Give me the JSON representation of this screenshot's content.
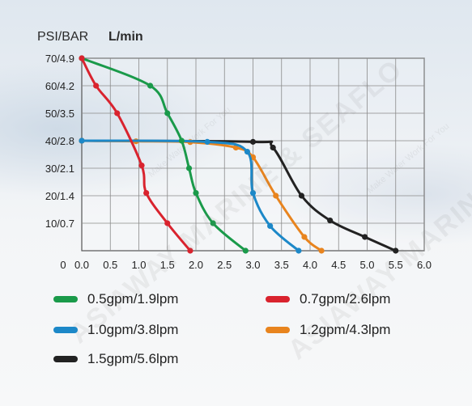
{
  "chart_data": {
    "type": "line",
    "ylabel": "PSI/BAR",
    "xlabel": "L/min",
    "xlim": [
      0,
      6.0
    ],
    "ylim": [
      0,
      70
    ],
    "grid": true,
    "x_ticks": [
      "0.5",
      "1.0",
      "1.5",
      "2.0",
      "2.5",
      "3.0",
      "3.5",
      "4.0",
      "4.5",
      "5.0",
      "5.5",
      "6.0"
    ],
    "x_tick_values": [
      0.5,
      1.0,
      1.5,
      2.0,
      2.5,
      3.0,
      3.5,
      4.0,
      4.5,
      5.0,
      5.5,
      6.0
    ],
    "origin_labels": [
      "0",
      "0.0"
    ],
    "y_ticks": [
      "10/0.7",
      "20/1.4",
      "30/2.1",
      "40/2.8",
      "50/3.5",
      "60/4.2",
      "70/4.9"
    ],
    "y_tick_values": [
      10,
      20,
      30,
      40,
      50,
      60,
      70
    ],
    "series": [
      {
        "name": "0.5gpm/1.9lpm",
        "color": "#1a9a4a",
        "x": [
          0,
          1.2,
          1.5,
          1.75,
          1.88,
          2.0,
          2.3,
          2.87
        ],
        "y": [
          70,
          60,
          50,
          40,
          30,
          21,
          10,
          0
        ]
      },
      {
        "name": "0.7gpm/2.6lpm",
        "color": "#d9232e",
        "x": [
          0,
          0.25,
          0.62,
          1.05,
          1.13,
          1.5,
          1.9
        ],
        "y": [
          70,
          60,
          50,
          31,
          21,
          10,
          0
        ]
      },
      {
        "name": "1.0gpm/3.8lpm",
        "color": "#1c88c8",
        "x": [
          0,
          2.2,
          2.9,
          3.0,
          3.3,
          3.8
        ],
        "y": [
          40,
          39.6,
          36,
          21,
          9,
          0
        ]
      },
      {
        "name": "1.2gpm/4.3lpm",
        "color": "#e8841e",
        "x": [
          0,
          0.95,
          1.9,
          2.7,
          3.0,
          3.4,
          3.9,
          4.2
        ],
        "y": [
          40,
          39.8,
          39.5,
          37.5,
          34,
          20,
          5,
          0
        ]
      },
      {
        "name": "1.5gpm/5.6lpm",
        "color": "#222222",
        "x": [
          0,
          3.0,
          3.35,
          3.85,
          4.35,
          4.96,
          5.5
        ],
        "y": [
          40,
          39.6,
          37.5,
          20,
          11,
          5,
          0
        ]
      }
    ]
  },
  "watermark": {
    "line1": "ASIAWAY MARINE & SEAFLO",
    "line2": "Make Water Work For You"
  }
}
